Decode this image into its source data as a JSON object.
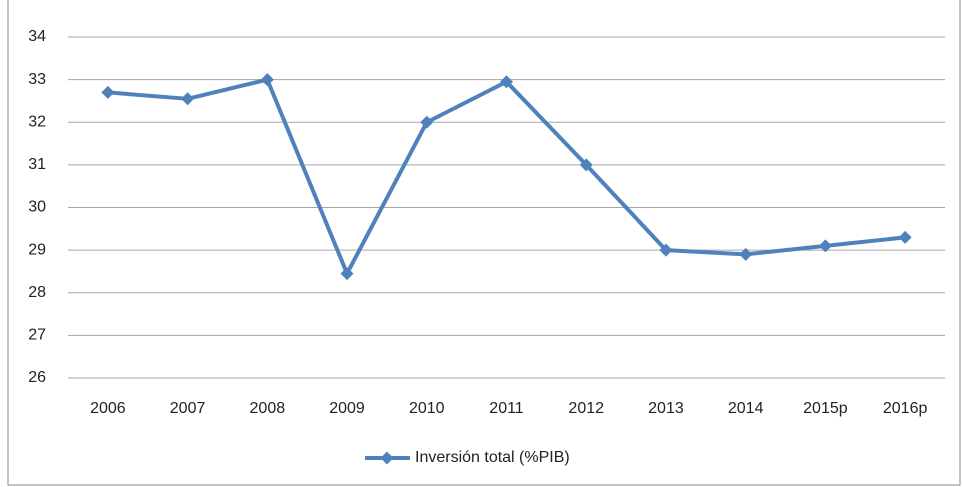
{
  "chart_data": {
    "type": "line",
    "categories": [
      "2006",
      "2007",
      "2008",
      "2009",
      "2010",
      "2011",
      "2012",
      "2013",
      "2014",
      "2015p",
      "2016p"
    ],
    "series": [
      {
        "name": "Inversión total (%PIB)",
        "color": "#4f81bd",
        "values": [
          32.7,
          32.55,
          33.0,
          28.45,
          32.0,
          32.95,
          31.0,
          29.0,
          28.9,
          29.1,
          29.3
        ]
      }
    ],
    "ylim": [
      26,
      34
    ],
    "yticks": [
      26,
      27,
      28,
      29,
      30,
      31,
      32,
      33,
      34
    ],
    "grid": true,
    "legend": "bottom"
  }
}
